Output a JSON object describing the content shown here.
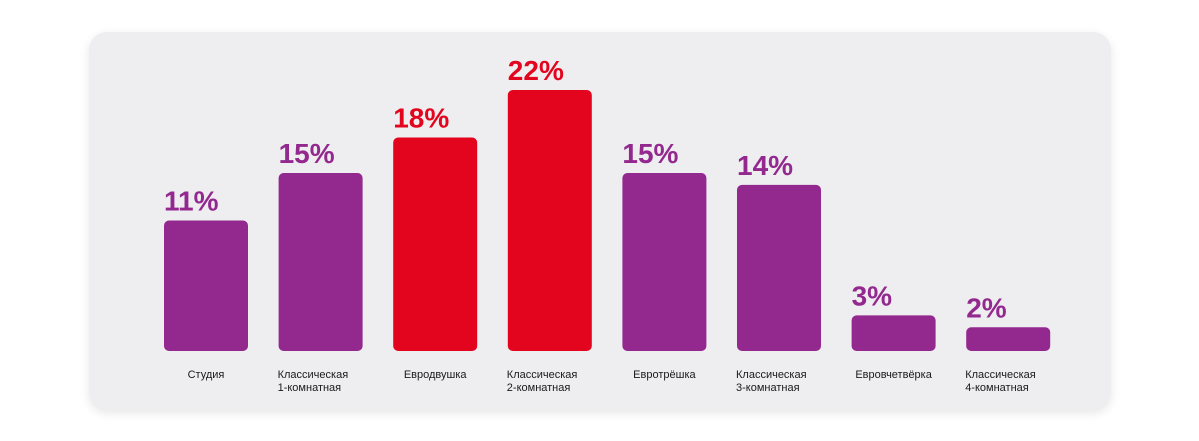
{
  "chart_data": {
    "type": "bar",
    "categories": [
      [
        "Студия"
      ],
      [
        "Классическая",
        "1-комнатная"
      ],
      [
        "Евродвушка"
      ],
      [
        "Классическая",
        "2-комнатная"
      ],
      [
        "Евротрёшка"
      ],
      [
        "Классическая",
        "3-комнатная"
      ],
      [
        "Евровчетвёрка"
      ],
      [
        "Классическая",
        "4-комнатная"
      ]
    ],
    "values": [
      11,
      15,
      18,
      22,
      15,
      14,
      3,
      2
    ],
    "value_labels": [
      "11%",
      "15%",
      "18%",
      "22%",
      "15%",
      "14%",
      "3%",
      "2%"
    ],
    "highlighted": [
      false,
      false,
      true,
      true,
      false,
      false,
      false,
      false
    ],
    "unit": "%",
    "ylim": [
      0,
      22
    ],
    "grid": false,
    "legend": "none"
  },
  "colors": {
    "default_bar": "#93288e",
    "highlight_bar": "#e3051e",
    "background_card": "#eeeef0"
  }
}
